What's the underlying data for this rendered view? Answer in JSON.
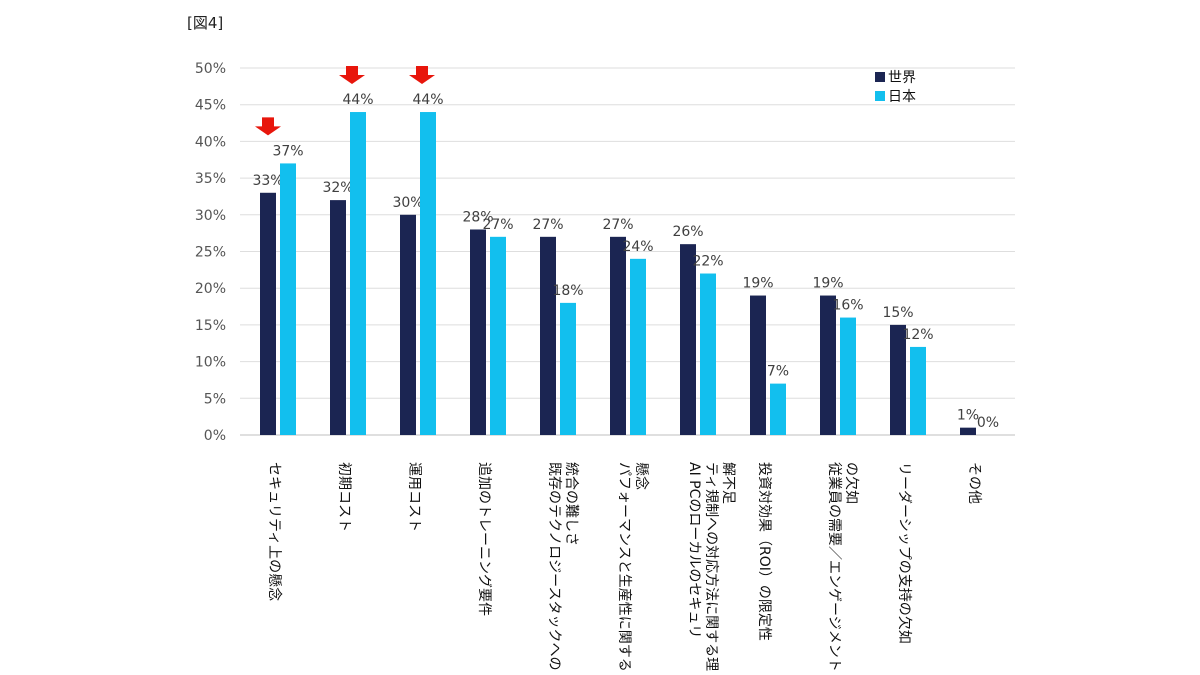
{
  "figure_label": "[図4]",
  "chart_data": {
    "type": "bar",
    "categories": [
      "セキュリティ上の懸念",
      "初期コスト",
      "運用コスト",
      "追加のトレーニング要件",
      "既存のテクノロジースタックへの統合の難しさ",
      "パフォーマンスと生産性に関する懸念",
      "AI PCのローカルのセキュリティ規制への対応方法に関する理解不足",
      "投資対効果（ROI）の限定性",
      "従業員の需要／エンゲージメントの欠如",
      "リーダーシップの支持の欠如",
      "その他"
    ],
    "series": [
      {
        "name": "世界",
        "values": [
          33,
          32,
          30,
          28,
          27,
          27,
          26,
          19,
          19,
          15,
          1
        ]
      },
      {
        "name": "日本",
        "values": [
          37,
          44,
          44,
          27,
          18,
          24,
          22,
          7,
          16,
          12,
          0
        ]
      }
    ],
    "data_labels": {
      "世界": [
        "33%",
        "32%",
        "30%",
        "28%",
        "27%",
        "27%",
        "26%",
        "19%",
        "19%",
        "15%",
        "1%"
      ],
      "日本": [
        "37%",
        "44%",
        "44%",
        "27%",
        "18%",
        "24%",
        "22%",
        "7%",
        "16%",
        "12%",
        "0%"
      ]
    },
    "ylim": [
      0,
      50
    ],
    "yticks": [
      "0%",
      "5%",
      "10%",
      "15%",
      "20%",
      "25%",
      "30%",
      "35%",
      "40%",
      "45%",
      "50%"
    ],
    "grid": true,
    "legend_position": "top-right",
    "colors": {
      "世界": "#1b2552",
      "日本": "#12bfee",
      "arrow": "#e8160c"
    },
    "highlight_arrows": [
      0,
      1,
      2
    ]
  }
}
